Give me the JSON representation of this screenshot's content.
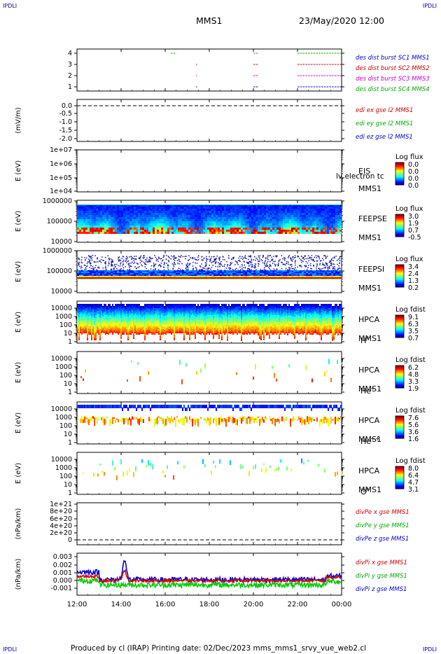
{
  "corner_mark": "IPDLI",
  "header": {
    "spacecraft": "MMS1",
    "datetime": "23/May/2020 12:00"
  },
  "footer": {
    "text": "Produced by cl (IRAP)    Printing date: 02/Dec/2023    mms_mms1_srvy_vue_web2.cl"
  },
  "chart_data": {
    "type": "heatmap",
    "x_axis": {
      "ticks": [
        "12:00",
        "14:00",
        "16:00",
        "18:00",
        "20:00",
        "22:00",
        "00:00"
      ],
      "range_hours": [
        12,
        24
      ]
    },
    "panels": [
      {
        "id": "burst",
        "type": "line",
        "yticks": [
          "4",
          "3",
          "2",
          "1"
        ],
        "ylim": [
          0.5,
          4.5
        ],
        "series": [
          {
            "name": "des dist burst SC1 MMS1",
            "color": "#0000cc",
            "level": 1
          },
          {
            "name": "des dist burst SC2 MMS2",
            "color": "#cc0000",
            "level": 3
          },
          {
            "name": "des dist burst SC3 MMS3",
            "color": "#cc00cc",
            "level": 2
          },
          {
            "name": "des dist burst SC4 MMS4",
            "color": "#00aa00",
            "level": 4
          }
        ]
      },
      {
        "id": "edi",
        "type": "line",
        "ylabel": "(mV/m)",
        "yticks": [
          "0.0",
          "-0.5",
          "-1.0",
          "-1.5",
          "-2.0"
        ],
        "ylim": [
          -2.0,
          0.2
        ],
        "series": [
          {
            "name": "edi ex gse l2 MMS1",
            "color": "#cc0000"
          },
          {
            "name": "edi ey gse l2 MMS1",
            "color": "#00aa00"
          },
          {
            "name": "edi ez gse l2 MMS1",
            "color": "#0000cc"
          }
        ]
      },
      {
        "id": "eis",
        "type": "heatmap",
        "ylabel": "E (eV)",
        "yscale": "log",
        "yticks": [
          "1e+07",
          "1e+06",
          "1e+05",
          "1e+04"
        ],
        "instrument": [
          "EIS",
          "MMS1"
        ],
        "overlay": "lv  electron tc",
        "colorbar": {
          "title": "Log flux",
          "ticks": [
            "0.0",
            "0.0",
            "0.0",
            "0.0"
          ]
        }
      },
      {
        "id": "feepse",
        "type": "heatmap",
        "ylabel": "E (eV)",
        "yscale": "log",
        "yticks": [
          "1000000",
          "100000",
          "10000"
        ],
        "instrument": [
          "FEEPSE",
          "MMS1"
        ],
        "colorbar": {
          "title": "Log flux",
          "ticks": [
            "3.0",
            "1.9",
            "0.7",
            "-0.5"
          ]
        }
      },
      {
        "id": "feepsi",
        "type": "heatmap",
        "ylabel": "E (eV)",
        "yscale": "log",
        "yticks": [
          "1000000",
          "100000",
          "10000"
        ],
        "instrument": [
          "FEEPSI",
          "MMS1"
        ],
        "colorbar": {
          "title": "Log flux",
          "ticks": [
            "3.4",
            "2.4",
            "1.3",
            "0.2"
          ]
        }
      },
      {
        "id": "hpca_h",
        "type": "heatmap",
        "ylabel": "E (eV)",
        "yscale": "log",
        "yticks": [
          "10000",
          "1000",
          "100",
          "10",
          "1"
        ],
        "instrument": [
          "HPCA",
          "MMS1"
        ],
        "species": "H",
        "charge": "+",
        "colorbar": {
          "title": "Log fdist",
          "ticks": [
            "9.1",
            "6.3",
            "3.5",
            "0.7"
          ]
        }
      },
      {
        "id": "hpca_he",
        "type": "heatmap",
        "ylabel": "E (eV)",
        "yscale": "log",
        "yticks": [
          "10000",
          "1000",
          "100",
          "10",
          "1"
        ],
        "instrument": [
          "HPCA",
          "MMS1"
        ],
        "species": "He",
        "charge": "+",
        "colorbar": {
          "title": "Log fdist",
          "ticks": [
            "6.2",
            "4.8",
            "3.3",
            "1.9"
          ]
        }
      },
      {
        "id": "hpca_hepp",
        "type": "heatmap",
        "ylabel": "E (eV)",
        "yscale": "log",
        "yticks": [
          "10000",
          "1000",
          "100",
          "10",
          "1"
        ],
        "instrument": [
          "HPCA",
          "MMS1"
        ],
        "species": "He",
        "charge": "++",
        "colorbar": {
          "title": "Log fdist",
          "ticks": [
            "7.6",
            "5.6",
            "3.6",
            "1.6"
          ]
        }
      },
      {
        "id": "hpca_o",
        "type": "heatmap",
        "ylabel": "E (eV)",
        "yscale": "log",
        "yticks": [
          "10000",
          "1000",
          "100",
          "10",
          "1"
        ],
        "instrument": [
          "HPCA",
          "MMS1"
        ],
        "species": "O",
        "charge": "+",
        "colorbar": {
          "title": "Log fdist",
          "ticks": [
            "8.0",
            "6.4",
            "4.7",
            "3.1"
          ]
        }
      },
      {
        "id": "divpe",
        "type": "line",
        "ylabel": "(nPa/km)",
        "yticks": [
          "1e+21",
          "8e+20",
          "6e+20",
          "4e+20",
          "2e+20",
          "0"
        ],
        "series": [
          {
            "name": "divPe x gse MMS1",
            "color": "#cc0000"
          },
          {
            "name": "divPe y gse MMS1",
            "color": "#00aa00"
          },
          {
            "name": "divPe z gse MMS1",
            "color": "#0000cc"
          }
        ]
      },
      {
        "id": "divpi",
        "type": "line",
        "ylabel": "(nPa/km)",
        "yticks": [
          "0.003",
          "0.002",
          "0.001",
          "0.000",
          "-0.001"
        ],
        "ylim": [
          -0.0015,
          0.0034
        ],
        "series": [
          {
            "name": "divPi x gse MMS1",
            "color": "#cc0000"
          },
          {
            "name": "divPi y gse MMS1",
            "color": "#00aa00"
          },
          {
            "name": "divPi z gse MMS1",
            "color": "#0000cc"
          }
        ]
      }
    ]
  }
}
